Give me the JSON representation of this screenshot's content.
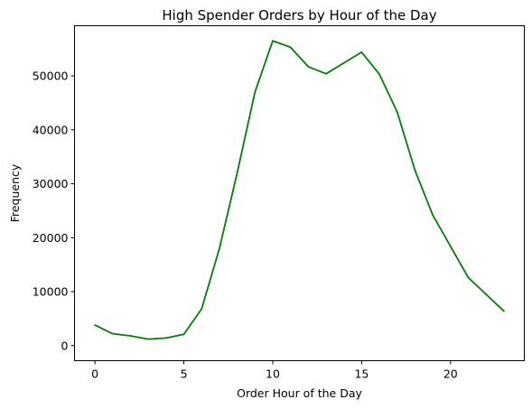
{
  "chart_data": {
    "type": "line",
    "title": "High Spender Orders by Hour of the Day",
    "xlabel": "Order Hour of the Day",
    "ylabel": "Frequency",
    "xlim": [
      -1.15,
      24.15
    ],
    "ylim": [
      -2800,
      59300
    ],
    "xticks": [
      0,
      5,
      10,
      15,
      20
    ],
    "yticks": [
      0,
      10000,
      20000,
      30000,
      40000,
      50000
    ],
    "grid": false,
    "legend": "none",
    "series": [
      {
        "color": "#008000",
        "x": [
          0,
          1,
          2,
          3,
          4,
          5,
          6,
          7,
          8,
          9,
          10,
          11,
          12,
          13,
          14,
          15,
          16,
          17,
          18,
          19,
          20,
          21,
          22,
          23
        ],
        "values": [
          3800,
          2200,
          1800,
          1200,
          1400,
          2100,
          6800,
          18000,
          32000,
          47000,
          56500,
          55300,
          51700,
          50400,
          52400,
          54400,
          50300,
          43300,
          32500,
          24200,
          18400,
          12600,
          9500,
          6400
        ]
      }
    ]
  }
}
